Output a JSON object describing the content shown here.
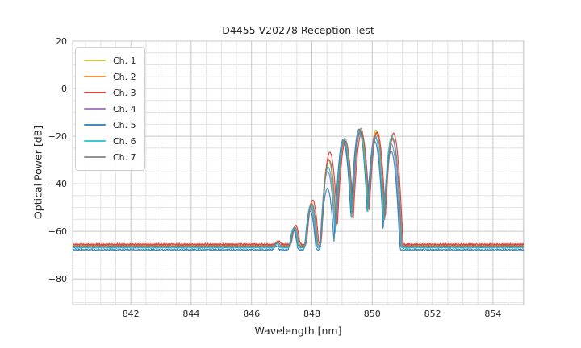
{
  "figure": {
    "title": "D4455 V20278 Reception Test",
    "xlabel": "Wavelength [nm]",
    "ylabel": "Optical Power [dB]",
    "background_color": "#ffffff",
    "text_color": "#262626",
    "grid_major_color": "#c9c9c9",
    "grid_minor_color": "#e3e3e3",
    "frame_color": "#c9c9c9"
  },
  "chart_data": {
    "type": "line",
    "title": "D4455 V20278 Reception Test",
    "xlabel": "Wavelength [nm]",
    "ylabel": "Optical Power [dB]",
    "xlim": [
      840.07,
      855.02
    ],
    "ylim": [
      -90.8,
      20
    ],
    "x_major_ticks": [
      842,
      844,
      846,
      848,
      850,
      852,
      854
    ],
    "y_major_ticks": [
      20,
      0,
      -20,
      -40,
      -60,
      -80
    ],
    "x_minor_step_nm": 0.5,
    "y_minor_step_db": 5,
    "grid": true,
    "legend_position": "upper left",
    "signal_band_nm": [
      846.6,
      851.1
    ],
    "lobe_centers_nm": [
      846.85,
      847.42,
      847.98,
      848.55,
      849.07,
      849.6,
      850.12,
      850.66
    ],
    "lobe_halfwidth_nm": 0.265,
    "lobe_falloff_db": 34,
    "noise_peak_to_peak_db": 0.7,
    "series": [
      {
        "name": "Ch. 1",
        "color": "#bcbd22",
        "baseline_db": -65.95,
        "dx_nm": 0.0,
        "lobe_peaks_db": [
          -66.3,
          -58.5,
          -48.3,
          -30.2,
          -22.3,
          -17.2,
          -17.4,
          -20.5
        ]
      },
      {
        "name": "Ch. 2",
        "color": "#ff7f0e",
        "baseline_db": -66.1,
        "dx_nm": 0.012,
        "lobe_peaks_db": [
          -66.4,
          -58.2,
          -48.0,
          -29.8,
          -22.0,
          -17.9,
          -18.4,
          -20.7
        ]
      },
      {
        "name": "Ch. 3",
        "color": "#d62728",
        "baseline_db": -65.5,
        "dx_nm": 0.045,
        "lobe_peaks_db": [
          -66.0,
          -57.6,
          -46.8,
          -26.8,
          -22.2,
          -18.8,
          -18.3,
          -18.8
        ]
      },
      {
        "name": "Ch. 4",
        "color": "#9467bd",
        "baseline_db": -66.6,
        "dx_nm": -0.025,
        "lobe_peaks_db": [
          -66.8,
          -58.8,
          -49.5,
          -34.8,
          -23.0,
          -18.4,
          -19.8,
          -23.3
        ]
      },
      {
        "name": "Ch. 5",
        "color": "#1f77b4",
        "baseline_db": -67.8,
        "dx_nm": -0.035,
        "lobe_peaks_db": [
          -67.9,
          -59.5,
          -51.5,
          -42.0,
          -21.5,
          -17.1,
          -22.3,
          -26.3
        ]
      },
      {
        "name": "Ch. 6",
        "color": "#17becf",
        "baseline_db": -66.9,
        "dx_nm": -0.01,
        "lobe_peaks_db": [
          -67.0,
          -58.6,
          -48.8,
          -33.0,
          -21.7,
          -19.0,
          -20.8,
          -20.2
        ]
      },
      {
        "name": "Ch. 7",
        "color": "#7f7f7f",
        "baseline_db": -66.3,
        "dx_nm": 0.02,
        "lobe_peaks_db": [
          -66.5,
          -58.4,
          -48.6,
          -30.0,
          -20.8,
          -16.7,
          -19.4,
          -21.4
        ]
      }
    ]
  }
}
